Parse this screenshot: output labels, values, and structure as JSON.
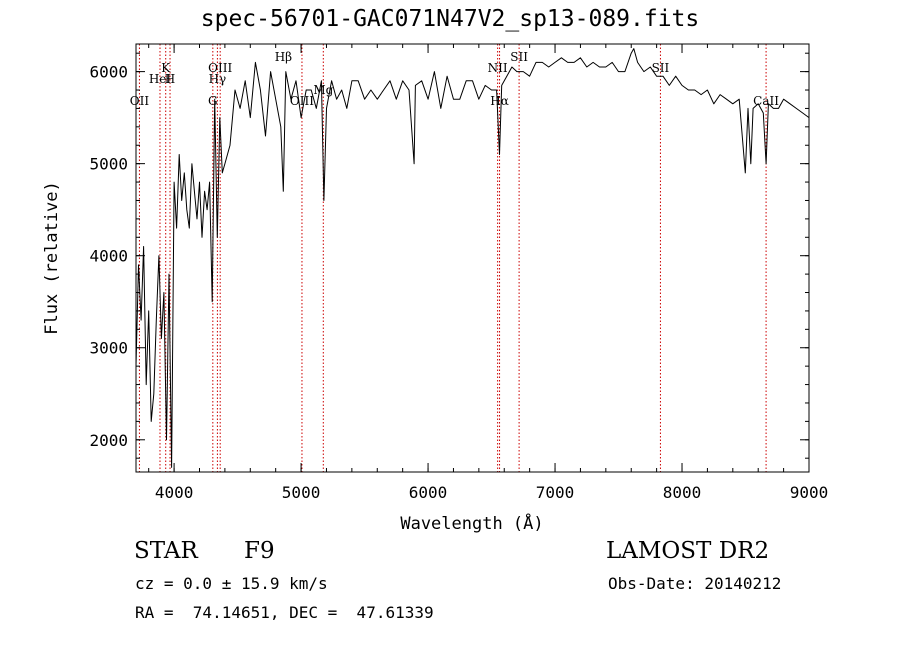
{
  "chart_data": {
    "type": "line",
    "title": "spec-56701-GAC071N47V2_sp13-089.fits",
    "xlabel": "Wavelength (Å)",
    "ylabel": "Flux (relative)",
    "xlim": [
      3700,
      9000
    ],
    "ylim": [
      1650,
      6300
    ],
    "xticks": [
      4000,
      5000,
      6000,
      7000,
      8000,
      9000
    ],
    "yticks": [
      2000,
      3000,
      4000,
      5000,
      6000
    ],
    "grid": false,
    "series": [
      {
        "x": [
          3700,
          3720,
          3740,
          3760,
          3780,
          3800,
          3820,
          3840,
          3860,
          3880,
          3900,
          3920,
          3940,
          3960,
          3980,
          4000,
          4020,
          4040,
          4060,
          4080,
          4100,
          4120,
          4140,
          4160,
          4180,
          4200,
          4220,
          4240,
          4260,
          4280,
          4300,
          4320,
          4340,
          4360,
          4380,
          4400,
          4440,
          4480,
          4520,
          4560,
          4600,
          4640,
          4680,
          4720,
          4760,
          4800,
          4840,
          4860,
          4880,
          4920,
          4960,
          5000,
          5040,
          5080,
          5120,
          5160,
          5180,
          5200,
          5240,
          5280,
          5320,
          5360,
          5400,
          5450,
          5500,
          5550,
          5600,
          5650,
          5700,
          5750,
          5800,
          5850,
          5890,
          5900,
          5950,
          6000,
          6050,
          6100,
          6150,
          6200,
          6250,
          6300,
          6350,
          6400,
          6450,
          6500,
          6540,
          6563,
          6580,
          6620,
          6660,
          6700,
          6750,
          6800,
          6850,
          6900,
          6950,
          7000,
          7050,
          7100,
          7150,
          7200,
          7250,
          7300,
          7350,
          7400,
          7450,
          7500,
          7550,
          7600,
          7620,
          7650,
          7700,
          7750,
          7800,
          7850,
          7900,
          7950,
          8000,
          8050,
          8100,
          8150,
          8200,
          8250,
          8300,
          8350,
          8400,
          8450,
          8498,
          8520,
          8542,
          8560,
          8600,
          8640,
          8662,
          8680,
          8720,
          8760,
          8800,
          8850,
          8900,
          8950,
          9000
        ],
        "y": [
          2800,
          3900,
          3300,
          4100,
          2600,
          3400,
          2200,
          2500,
          3300,
          4000,
          3100,
          3600,
          2000,
          3800,
          1700,
          4800,
          4300,
          5100,
          4600,
          4900,
          4500,
          4300,
          5000,
          4700,
          4400,
          4800,
          4200,
          4700,
          4500,
          4800,
          3500,
          5700,
          4200,
          5500,
          4900,
          5000,
          5200,
          5800,
          5600,
          5900,
          5500,
          6100,
          5800,
          5300,
          6000,
          5700,
          5400,
          4700,
          6000,
          5700,
          5900,
          5500,
          5800,
          5800,
          5600,
          5900,
          4600,
          5600,
          5900,
          5700,
          5800,
          5600,
          5900,
          5900,
          5700,
          5800,
          5700,
          5800,
          5900,
          5700,
          5900,
          5800,
          5000,
          5850,
          5900,
          5700,
          6000,
          5600,
          5950,
          5700,
          5700,
          5900,
          5900,
          5700,
          5850,
          5800,
          5800,
          5100,
          5850,
          5950,
          6050,
          6000,
          6000,
          5950,
          6100,
          6100,
          6050,
          6100,
          6150,
          6100,
          6100,
          6150,
          6050,
          6100,
          6050,
          6050,
          6100,
          6000,
          6000,
          6200,
          6250,
          6100,
          6000,
          6050,
          5950,
          5950,
          5850,
          5950,
          5850,
          5800,
          5800,
          5750,
          5800,
          5650,
          5750,
          5700,
          5650,
          5700,
          4900,
          5600,
          5000,
          5600,
          5650,
          5550,
          5000,
          5650,
          5600,
          5600,
          5700,
          5650,
          5600,
          5550,
          5500
        ]
      }
    ],
    "annotations": [
      {
        "label": "OII",
        "x": 3727,
        "row": 4
      },
      {
        "label": "K",
        "x": 3934,
        "row": 1
      },
      {
        "label": "H",
        "x": 3968,
        "row": 2
      },
      {
        "label": "HeI",
        "x": 3889,
        "row": 2
      },
      {
        "label": "G",
        "x": 4305,
        "row": 4
      },
      {
        "label": "OIII",
        "x": 4363,
        "row": 1
      },
      {
        "label": "Hγ",
        "x": 4341,
        "row": 2
      },
      {
        "label": "Hβ",
        "x": 4861,
        "row": 0
      },
      {
        "label": "OIII",
        "x": 5007,
        "row": 4
      },
      {
        "label": "Mg",
        "x": 5175,
        "row": 3
      },
      {
        "label": "NII",
        "x": 6548,
        "row": 1
      },
      {
        "label": "Hα",
        "x": 6563,
        "row": 4
      },
      {
        "label": "SII",
        "x": 6717,
        "row": 0
      },
      {
        "label": "SII",
        "x": 7830,
        "row": 1
      },
      {
        "label": "CaII",
        "x": 8662,
        "row": 4
      }
    ],
    "line_markers": [
      3727,
      3889,
      3934,
      3968,
      4305,
      4341,
      4363,
      5007,
      5175,
      6548,
      6563,
      6717,
      7830,
      8662
    ],
    "line_color": "#000000",
    "marker_color": "#cc0000"
  },
  "footer": {
    "object_class": "STAR",
    "subclass": "F9",
    "survey": "LAMOST DR2",
    "cz": "cz = 0.0 ± 15.9 km/s",
    "obs_date": "Obs-Date: 20140212",
    "radec": "RA =  74.14651, DEC =  47.61339"
  }
}
